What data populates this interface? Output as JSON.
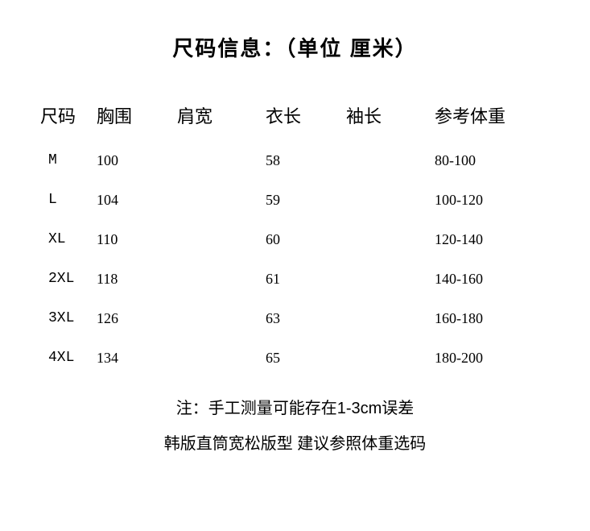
{
  "title": "尺码信息：（单位 厘米）",
  "columns": {
    "size": "尺码",
    "chest": "胸围",
    "shoulder": "肩宽",
    "length": "衣长",
    "sleeve": "袖长",
    "weight": "参考体重"
  },
  "rows": [
    {
      "size": "M",
      "chest": "100",
      "shoulder": "",
      "length": "58",
      "sleeve": "",
      "weight": "80-100"
    },
    {
      "size": "L",
      "chest": "104",
      "shoulder": "",
      "length": "59",
      "sleeve": "",
      "weight": "100-120"
    },
    {
      "size": "XL",
      "chest": "110",
      "shoulder": "",
      "length": "60",
      "sleeve": "",
      "weight": "120-140"
    },
    {
      "size": "2XL",
      "chest": "118",
      "shoulder": "",
      "length": "61",
      "sleeve": "",
      "weight": "140-160"
    },
    {
      "size": "3XL",
      "chest": "126",
      "shoulder": "",
      "length": "63",
      "sleeve": "",
      "weight": "160-180"
    },
    {
      "size": "4XL",
      "chest": "134",
      "shoulder": "",
      "length": "65",
      "sleeve": "",
      "weight": "180-200"
    }
  ],
  "notes": {
    "line1": "注：手工测量可能存在1-3cm误差",
    "line2": "韩版直筒宽松版型  建议参照体重选码"
  },
  "styling": {
    "background_color": "#ffffff",
    "text_color": "#000000",
    "title_fontsize": 26,
    "header_fontsize": 22,
    "data_fontsize": 18,
    "note_fontsize": 20,
    "row_spacing": 28,
    "column_widths": {
      "size": 80,
      "chest": 100,
      "shoulder": 110,
      "length": 100,
      "sleeve": 100,
      "weight": 140
    }
  }
}
